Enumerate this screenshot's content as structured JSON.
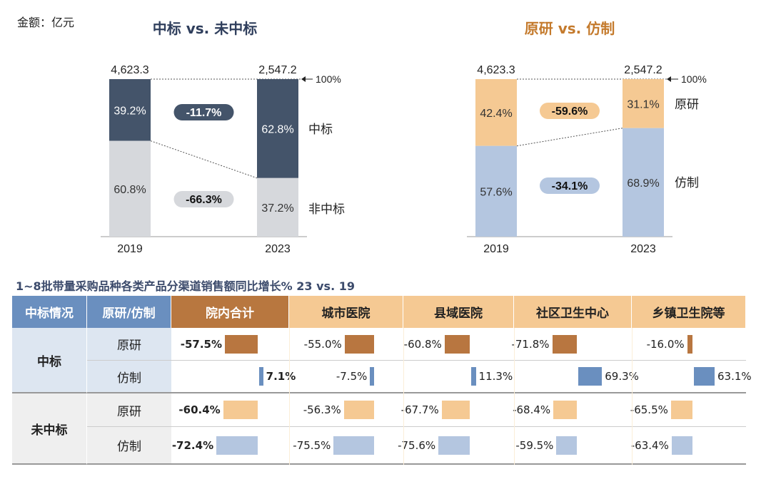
{
  "unit_label": "金额：亿元",
  "colors": {
    "win": "#44546a",
    "nonwin": "#d6d8dc",
    "orig": "#f5c993",
    "generic": "#b4c6e0",
    "title_left": "#2f3e5c",
    "title_right": "#c47a2c",
    "hdr_blue": "#6a8fbf",
    "hdr_brown": "#b8773f",
    "hdr_orange": "#f5c993",
    "bar_win_orig": "#b87640",
    "bar_win_gen": "#6a8fbf",
    "bar_non_orig": "#f5c993",
    "bar_non_gen": "#b4c6e0"
  },
  "chart_data": [
    {
      "type": "bar",
      "stacked_percent": true,
      "title": "中标 vs. 未中标",
      "categories": [
        "2019",
        "2023"
      ],
      "totals": [
        "4,623.3",
        "2,547.2"
      ],
      "reference_label": "100%",
      "series": [
        {
          "name": "中标",
          "values": [
            39.2,
            62.8
          ],
          "labels": [
            "39.2%",
            "62.8%"
          ],
          "change": "-11.7%"
        },
        {
          "name": "非中标",
          "values": [
            60.8,
            37.2
          ],
          "labels": [
            "60.8%",
            "37.2%"
          ],
          "change": "-66.3%"
        }
      ]
    },
    {
      "type": "bar",
      "stacked_percent": true,
      "title": "原研 vs. 仿制",
      "categories": [
        "2019",
        "2023"
      ],
      "totals": [
        "4,623.3",
        "2,547.2"
      ],
      "reference_label": "100%",
      "series": [
        {
          "name": "原研",
          "values": [
            42.4,
            31.1
          ],
          "labels": [
            "42.4%",
            "31.1%"
          ],
          "change": "-59.6%"
        },
        {
          "name": "仿制",
          "values": [
            57.6,
            68.9
          ],
          "labels": [
            "57.6%",
            "68.9%"
          ],
          "change": "-34.1%"
        }
      ]
    },
    {
      "type": "table",
      "title": "1~8批带量采购品种各类产品分渠道销售额同比增长% 23 vs. 19",
      "headers": [
        "中标情况",
        "原研/仿制",
        "院内合计",
        "城市医院",
        "县域医院",
        "社区卫生中心",
        "乡镇卫生院等"
      ],
      "groups": [
        {
          "name": "中标",
          "rows": [
            {
              "type": "原研",
              "values": [
                -57.5,
                -55.0,
                -60.8,
                -71.8,
                -16.0
              ],
              "labels": [
                "-57.5%",
                "-55.0%",
                "-60.8%",
                "-71.8%",
                "-16.0%"
              ]
            },
            {
              "type": "仿制",
              "values": [
                7.1,
                -7.5,
                11.3,
                69.3,
                63.1
              ],
              "labels": [
                "7.1%",
                "-7.5%",
                "11.3%",
                "69.3%",
                "63.1%"
              ]
            }
          ]
        },
        {
          "name": "未中标",
          "rows": [
            {
              "type": "原研",
              "values": [
                -60.4,
                -56.3,
                -67.7,
                -68.4,
                -65.5
              ],
              "labels": [
                "-60.4%",
                "-56.3%",
                "-67.7%",
                "-68.4%",
                "-65.5%"
              ]
            },
            {
              "type": "仿制",
              "values": [
                -72.4,
                -75.5,
                -75.6,
                -59.5,
                -63.4
              ],
              "labels": [
                "-72.4%",
                "-75.5%",
                "-75.6%",
                "-59.5%",
                "-63.4%"
              ]
            }
          ]
        }
      ]
    }
  ]
}
